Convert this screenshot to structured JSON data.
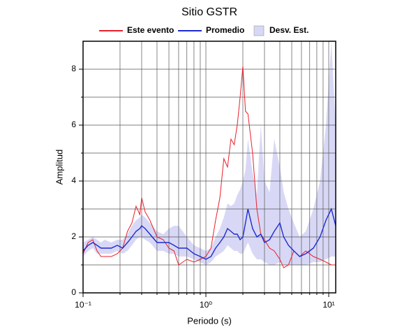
{
  "chart_data": {
    "type": "line",
    "title": "Sitio GSTR",
    "x_label": "Periodo (s)",
    "y_label": "Amplitud",
    "log_x": true,
    "grid": true,
    "legend": "top",
    "xlim": [
      0.1,
      11.4
    ],
    "ylim": [
      0,
      9
    ],
    "xticks": [
      {
        "value": 0.1,
        "label": "10⁻¹"
      },
      {
        "value": 1,
        "label": "10⁰"
      },
      {
        "value": 10,
        "label": "10¹"
      }
    ],
    "xticks_minor": [
      0.2,
      0.3,
      0.4,
      0.5,
      0.6,
      0.7,
      0.8,
      0.9,
      2,
      3,
      4,
      5,
      6,
      7,
      8,
      9
    ],
    "yticks": [
      0,
      2,
      4,
      6,
      8
    ],
    "yticks_minor": [
      1,
      3,
      5,
      7
    ],
    "x": [
      0.1,
      0.11,
      0.12,
      0.13,
      0.14,
      0.15,
      0.17,
      0.19,
      0.21,
      0.23,
      0.25,
      0.27,
      0.29,
      0.3,
      0.32,
      0.35,
      0.4,
      0.45,
      0.5,
      0.55,
      0.6,
      0.7,
      0.8,
      0.9,
      1.0,
      1.1,
      1.2,
      1.3,
      1.4,
      1.5,
      1.6,
      1.7,
      1.8,
      1.9,
      2.0,
      2.1,
      2.2,
      2.4,
      2.6,
      2.8,
      3.0,
      3.3,
      3.6,
      4.0,
      4.3,
      4.7,
      5.2,
      5.8,
      6.5,
      7.5,
      8.5,
      9.5,
      10.5,
      11.4
    ],
    "series": [
      {
        "name": "Este evento",
        "color": "#e8202a",
        "values": [
          1.4,
          1.8,
          1.9,
          1.5,
          1.3,
          1.3,
          1.3,
          1.4,
          1.6,
          2.2,
          2.5,
          3.1,
          2.8,
          3.4,
          2.9,
          2.6,
          2.0,
          1.9,
          1.6,
          1.5,
          1.0,
          1.2,
          1.1,
          1.2,
          1.3,
          1.6,
          2.6,
          3.4,
          4.8,
          4.5,
          5.5,
          5.3,
          6.0,
          7.0,
          8.1,
          6.5,
          6.4,
          5.0,
          3.0,
          2.1,
          1.9,
          1.6,
          1.5,
          1.2,
          0.9,
          1.0,
          1.5,
          1.3,
          1.5,
          1.3,
          1.2,
          1.1,
          1.0,
          1.0
        ]
      },
      {
        "name": "Promedio",
        "color": "#1c2bd0",
        "values": [
          1.5,
          1.7,
          1.8,
          1.7,
          1.6,
          1.6,
          1.6,
          1.7,
          1.6,
          1.8,
          2.0,
          2.2,
          2.3,
          2.4,
          2.3,
          2.1,
          1.8,
          1.8,
          1.8,
          1.7,
          1.6,
          1.6,
          1.4,
          1.3,
          1.2,
          1.3,
          1.6,
          1.8,
          2.0,
          2.3,
          2.2,
          2.1,
          2.1,
          1.9,
          2.0,
          2.5,
          3.0,
          2.3,
          2.0,
          2.1,
          1.8,
          1.9,
          2.2,
          2.5,
          2.0,
          1.7,
          1.5,
          1.3,
          1.4,
          1.6,
          2.0,
          2.6,
          3.0,
          2.4
        ]
      },
      {
        "name": "Desv. Est.",
        "color": "#d8d8f6",
        "band": true,
        "lower": [
          1.3,
          1.5,
          1.6,
          1.4,
          1.4,
          1.4,
          1.4,
          1.5,
          1.4,
          1.5,
          1.7,
          1.9,
          2.0,
          2.0,
          1.9,
          1.8,
          1.5,
          1.5,
          1.4,
          1.4,
          1.3,
          1.3,
          1.2,
          1.1,
          1.0,
          1.1,
          1.3,
          1.4,
          1.5,
          1.7,
          1.6,
          1.5,
          1.5,
          1.4,
          1.4,
          1.6,
          1.8,
          1.4,
          1.2,
          1.2,
          1.1,
          1.0,
          1.0,
          1.1,
          1.0,
          1.0,
          1.0,
          1.0,
          1.0,
          1.1,
          1.1,
          1.2,
          1.3,
          1.3
        ],
        "upper": [
          1.8,
          1.9,
          2.0,
          1.9,
          1.8,
          1.9,
          1.8,
          1.9,
          1.9,
          2.1,
          2.4,
          2.6,
          2.7,
          2.8,
          2.7,
          2.5,
          2.2,
          2.1,
          2.3,
          2.4,
          2.4,
          2.0,
          1.7,
          1.6,
          1.5,
          1.6,
          2.0,
          2.3,
          2.7,
          3.2,
          3.1,
          3.2,
          3.5,
          3.7,
          4.0,
          4.4,
          5.5,
          4.3,
          3.5,
          6.0,
          4.0,
          3.6,
          5.5,
          4.5,
          3.6,
          3.0,
          2.5,
          2.0,
          2.2,
          3.0,
          4.0,
          6.0,
          9.0,
          6.0
        ]
      }
    ]
  }
}
